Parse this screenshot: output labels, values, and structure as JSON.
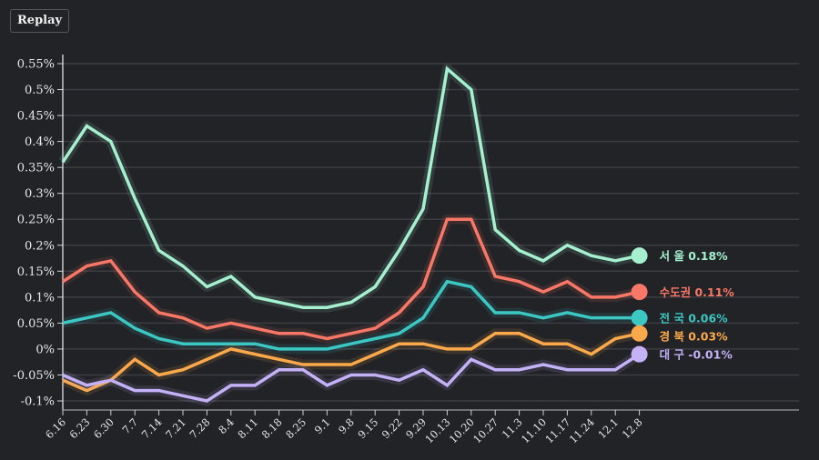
{
  "toolbar": {
    "replay_label": "Replay"
  },
  "chart_data": {
    "type": "line",
    "title": "",
    "xlabel": "",
    "ylabel": "",
    "ylim": [
      -0.12,
      0.56
    ],
    "y_ticks": [
      -0.1,
      -0.05,
      0,
      0.05,
      0.1,
      0.15,
      0.2,
      0.25,
      0.3,
      0.35,
      0.4,
      0.45,
      0.5,
      0.55
    ],
    "y_tick_labels": [
      "-0.1%",
      "-0.05%",
      "0%",
      "0.05%",
      "0.1%",
      "0.15%",
      "0.2%",
      "0.25%",
      "0.3%",
      "0.35%",
      "0.4%",
      "0.45%",
      "0.5%",
      "0.55%"
    ],
    "grid": true,
    "legend_placement": "right-end-of-lines",
    "x": [
      "6.16",
      "6.23",
      "6.30",
      "7.7",
      "7.14",
      "7.21",
      "7.28",
      "8.4",
      "8.11",
      "8.18",
      "8.25",
      "9.1",
      "9.8",
      "9.15",
      "9.22",
      "9.29",
      "10.13",
      "10.20",
      "10.27",
      "11.3",
      "11.10",
      "11.17",
      "11.24",
      "12.1",
      "12.8"
    ],
    "series": [
      {
        "name": "서 울",
        "label": "서 울 0.18%",
        "color": "#a4f0cf",
        "values": [
          0.36,
          0.43,
          0.4,
          0.29,
          0.19,
          0.16,
          0.12,
          0.14,
          0.1,
          0.09,
          0.08,
          0.08,
          0.09,
          0.12,
          0.19,
          0.27,
          0.54,
          0.5,
          0.23,
          0.19,
          0.17,
          0.2,
          0.18,
          0.17,
          0.18
        ]
      },
      {
        "name": "수도권",
        "label": "수도권 0.11%",
        "color": "#f97766",
        "values": [
          0.13,
          0.16,
          0.17,
          0.11,
          0.07,
          0.06,
          0.04,
          0.05,
          0.04,
          0.03,
          0.03,
          0.02,
          0.03,
          0.04,
          0.07,
          0.12,
          0.25,
          0.25,
          0.14,
          0.13,
          0.11,
          0.13,
          0.1,
          0.1,
          0.11
        ]
      },
      {
        "name": "전 국",
        "label": "전 국 0.06%",
        "color": "#3cc7c3",
        "values": [
          0.05,
          0.06,
          0.07,
          0.04,
          0.02,
          0.01,
          0.01,
          0.01,
          0.01,
          0.0,
          0.0,
          0.0,
          0.01,
          0.02,
          0.03,
          0.06,
          0.13,
          0.12,
          0.07,
          0.07,
          0.06,
          0.07,
          0.06,
          0.06,
          0.06
        ]
      },
      {
        "name": "경 북",
        "label": "경 북 0.03%",
        "color": "#fba94b",
        "values": [
          -0.06,
          -0.08,
          -0.06,
          -0.02,
          -0.05,
          -0.04,
          -0.02,
          0.0,
          -0.01,
          -0.02,
          -0.03,
          -0.03,
          -0.03,
          -0.01,
          0.01,
          0.01,
          0.0,
          0.0,
          0.03,
          0.03,
          0.01,
          0.01,
          -0.01,
          0.02,
          0.03
        ]
      },
      {
        "name": "대 구",
        "label": "대 구 -0.01%",
        "color": "#c4b1f7",
        "values": [
          -0.05,
          -0.07,
          -0.06,
          -0.08,
          -0.08,
          -0.09,
          -0.1,
          -0.07,
          -0.07,
          -0.04,
          -0.04,
          -0.07,
          -0.05,
          -0.05,
          -0.06,
          -0.04,
          -0.07,
          -0.02,
          -0.04,
          -0.04,
          -0.03,
          -0.04,
          -0.04,
          -0.04,
          -0.01
        ]
      }
    ]
  }
}
